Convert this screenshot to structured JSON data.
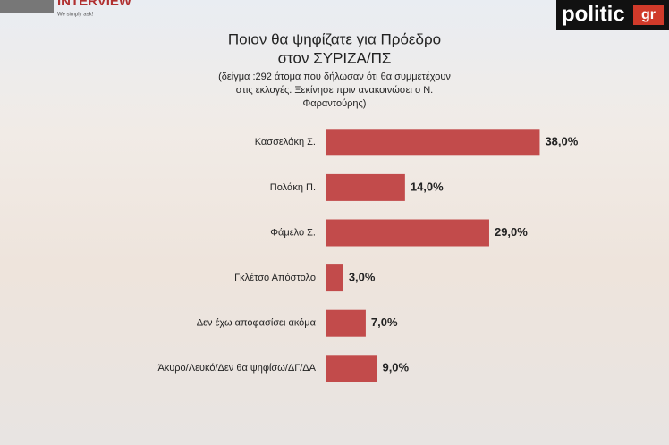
{
  "logos": {
    "left": "INTERVIEW",
    "left_tagline": "We simply ask!",
    "right_main": "politic",
    "right_suffix": "gr"
  },
  "chart_data": {
    "type": "hbar",
    "title": [
      "Ποιον θα ψηφίζατε για Πρόεδρο",
      "στον ΣΥΡΙΖΑ/ΠΣ"
    ],
    "subtitle": [
      "(δείγμα :292 άτομα που δήλωσαν ότι θα συμμετέχουν",
      "στις εκλογές. Ξεκίνησε πριν ανακοινώσει ο Ν.",
      "Φαραντούρης)"
    ],
    "categories": [
      "Κασσελάκη Σ.",
      "Πολάκη Π.",
      "Φάμελο Σ.",
      "Γκλέτσο Απόστολο",
      "Δεν έχω αποφασίσει ακόμα",
      "Άκυρο/Λευκό/Δεν θα ψηφίσω/ΔΓ/ΔΑ"
    ],
    "values": [
      38,
      14,
      29,
      3,
      7,
      9
    ],
    "value_labels": [
      "38,0%",
      "14,0%",
      "29,0%",
      "3,0%",
      "7,0%",
      "9,0%"
    ],
    "color": "#c24b4b",
    "xlim": [
      0,
      40
    ]
  }
}
